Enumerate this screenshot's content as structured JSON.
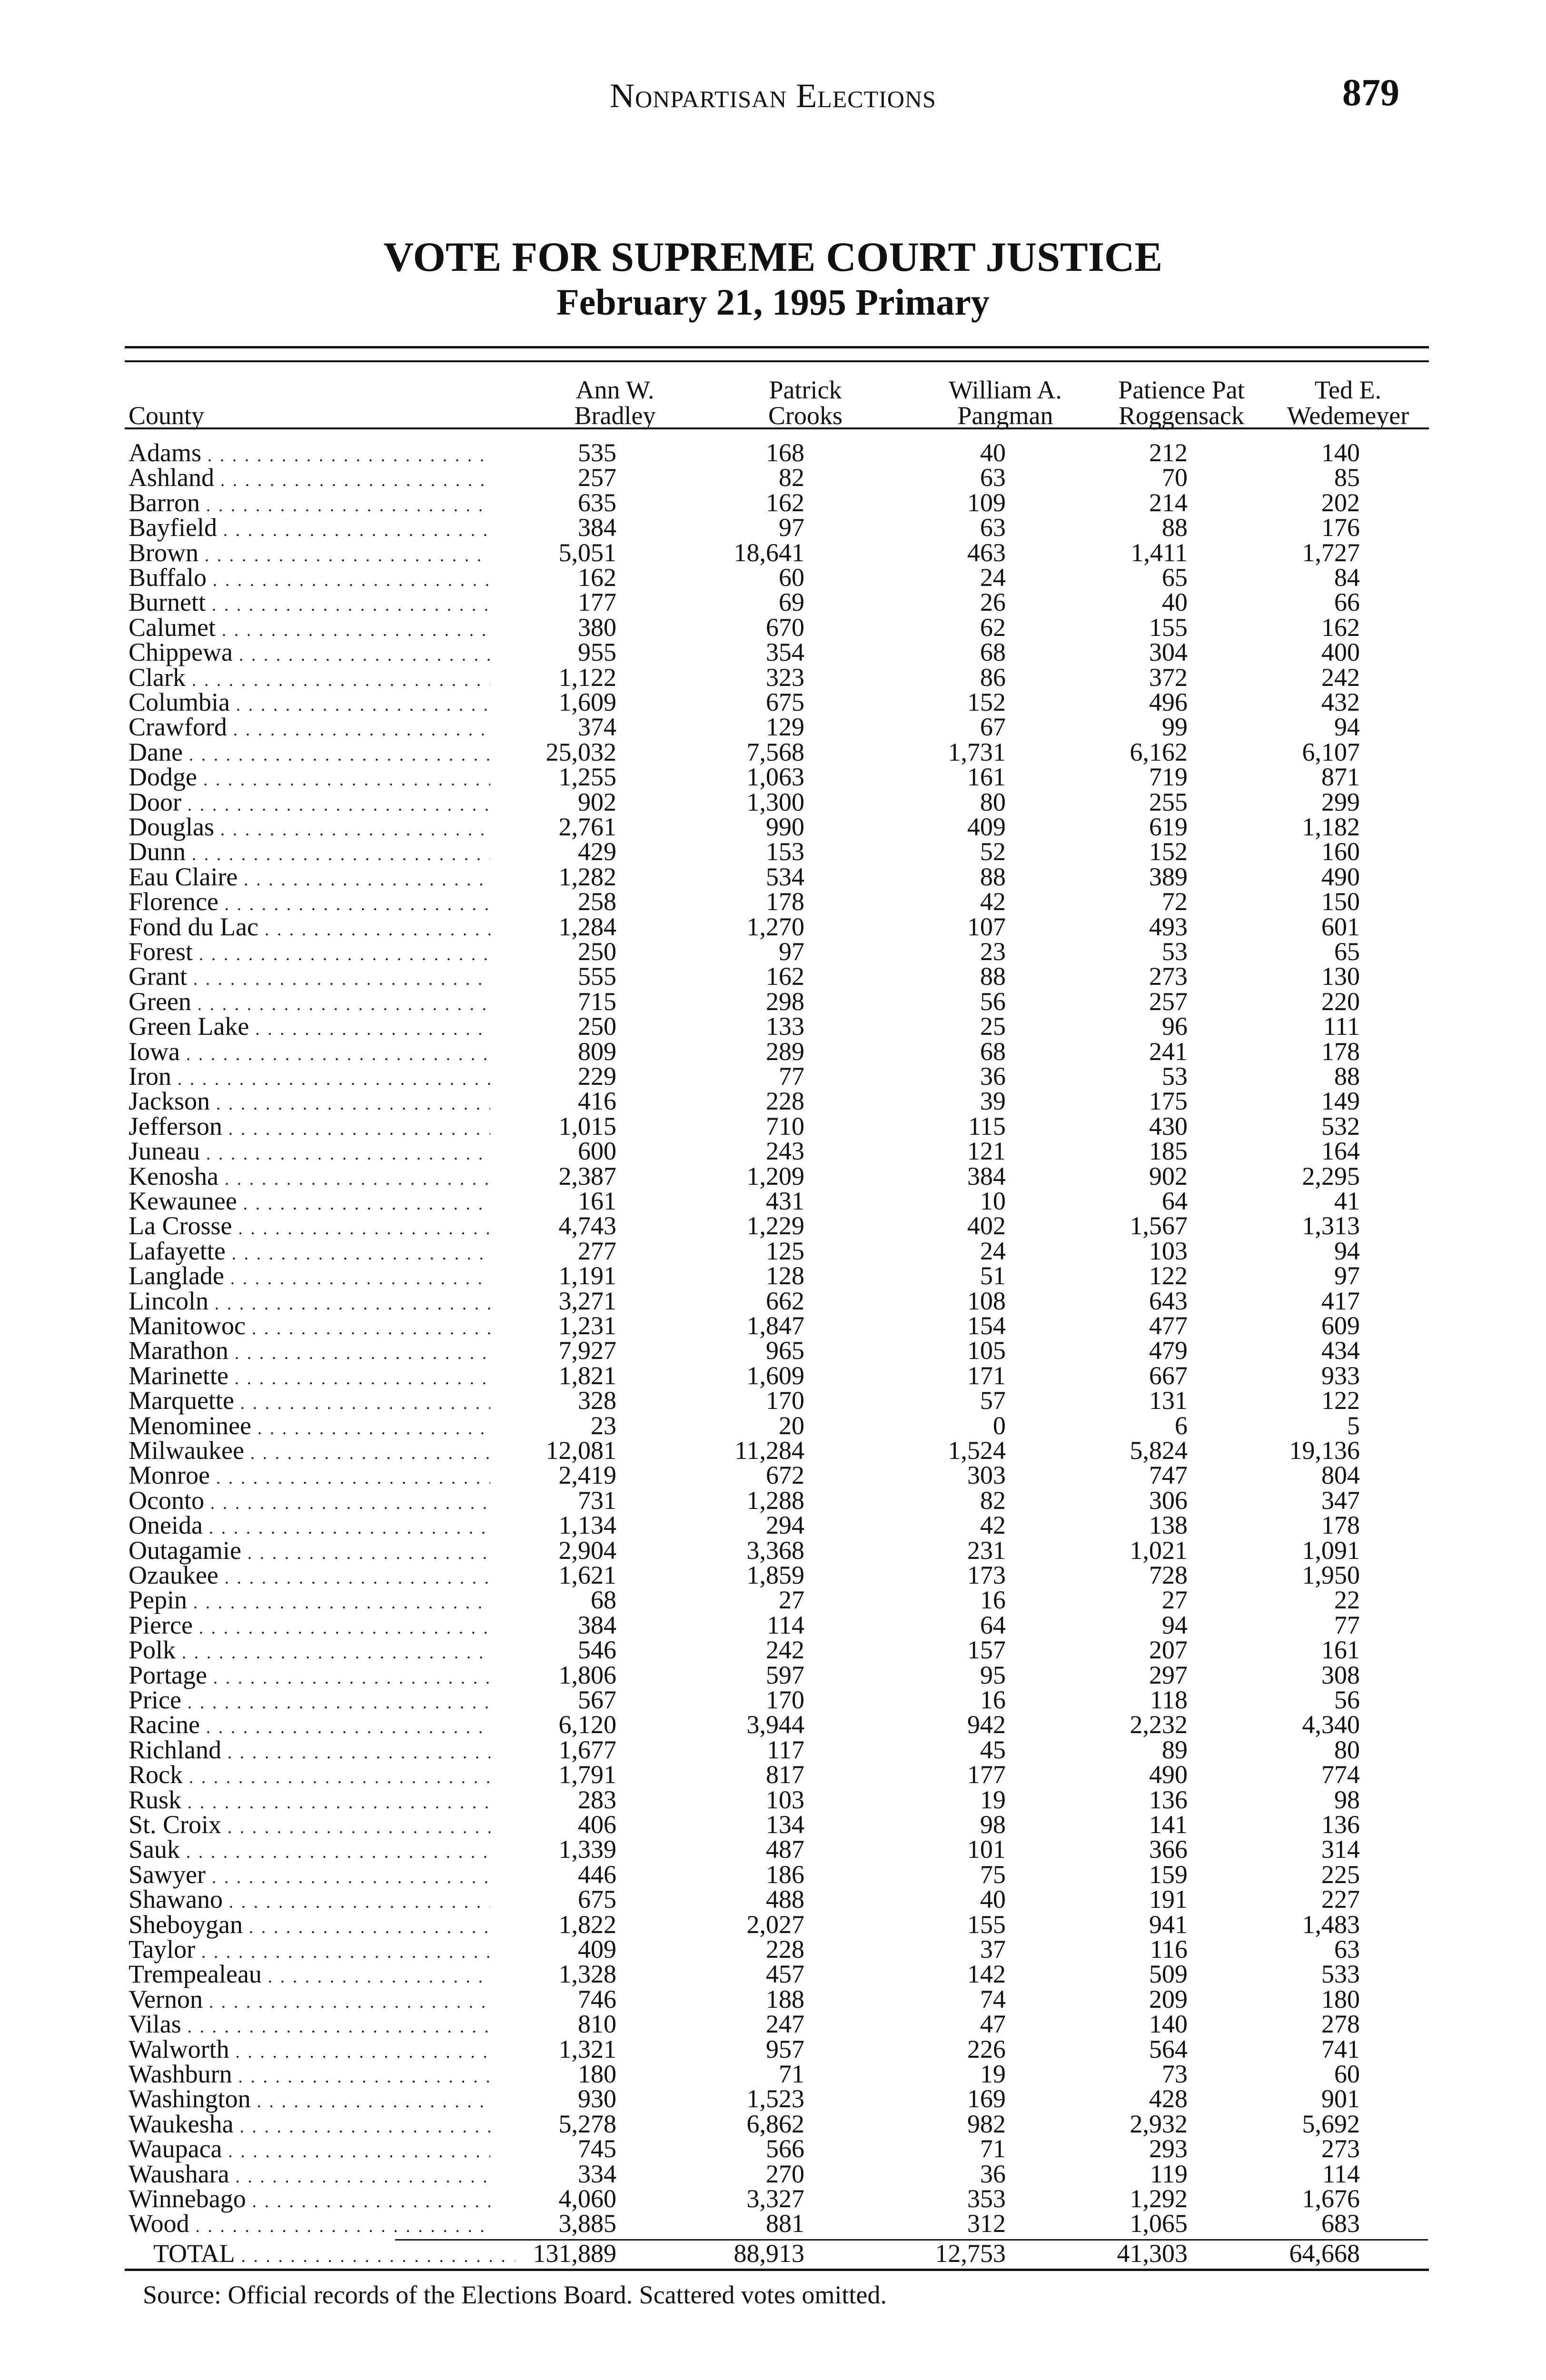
{
  "running_head": "Nonpartisan Elections",
  "page_number": "879",
  "title": "VOTE FOR SUPREME COURT JUSTICE",
  "subtitle": "February 21, 1995 Primary",
  "table": {
    "county_header": "County",
    "candidates": [
      {
        "first": "Ann W.",
        "last": "Bradley"
      },
      {
        "first": "Patrick",
        "last": "Crooks"
      },
      {
        "first": "William A.",
        "last": "Pangman"
      },
      {
        "first": "Patience Pat",
        "last": "Roggensack"
      },
      {
        "first": "Ted E.",
        "last": "Wedemeyer"
      }
    ],
    "rows": [
      [
        "Adams",
        "535",
        "168",
        "40",
        "212",
        "140"
      ],
      [
        "Ashland",
        "257",
        "82",
        "63",
        "70",
        "85"
      ],
      [
        "Barron",
        "635",
        "162",
        "109",
        "214",
        "202"
      ],
      [
        "Bayfield",
        "384",
        "97",
        "63",
        "88",
        "176"
      ],
      [
        "Brown",
        "5,051",
        "18,641",
        "463",
        "1,411",
        "1,727"
      ],
      [
        "Buffalo",
        "162",
        "60",
        "24",
        "65",
        "84"
      ],
      [
        "Burnett",
        "177",
        "69",
        "26",
        "40",
        "66"
      ],
      [
        "Calumet",
        "380",
        "670",
        "62",
        "155",
        "162"
      ],
      [
        "Chippewa",
        "955",
        "354",
        "68",
        "304",
        "400"
      ],
      [
        "Clark",
        "1,122",
        "323",
        "86",
        "372",
        "242"
      ],
      [
        "Columbia",
        "1,609",
        "675",
        "152",
        "496",
        "432"
      ],
      [
        "Crawford",
        "374",
        "129",
        "67",
        "99",
        "94"
      ],
      [
        "Dane",
        "25,032",
        "7,568",
        "1,731",
        "6,162",
        "6,107"
      ],
      [
        "Dodge",
        "1,255",
        "1,063",
        "161",
        "719",
        "871"
      ],
      [
        "Door",
        "902",
        "1,300",
        "80",
        "255",
        "299"
      ],
      [
        "Douglas",
        "2,761",
        "990",
        "409",
        "619",
        "1,182"
      ],
      [
        "Dunn",
        "429",
        "153",
        "52",
        "152",
        "160"
      ],
      [
        "Eau Claire",
        "1,282",
        "534",
        "88",
        "389",
        "490"
      ],
      [
        "Florence",
        "258",
        "178",
        "42",
        "72",
        "150"
      ],
      [
        "Fond du Lac",
        "1,284",
        "1,270",
        "107",
        "493",
        "601"
      ],
      [
        "Forest",
        "250",
        "97",
        "23",
        "53",
        "65"
      ],
      [
        "Grant",
        "555",
        "162",
        "88",
        "273",
        "130"
      ],
      [
        "Green",
        "715",
        "298",
        "56",
        "257",
        "220"
      ],
      [
        "Green Lake",
        "250",
        "133",
        "25",
        "96",
        "111"
      ],
      [
        "Iowa",
        "809",
        "289",
        "68",
        "241",
        "178"
      ],
      [
        "Iron",
        "229",
        "77",
        "36",
        "53",
        "88"
      ],
      [
        "Jackson",
        "416",
        "228",
        "39",
        "175",
        "149"
      ],
      [
        "Jefferson",
        "1,015",
        "710",
        "115",
        "430",
        "532"
      ],
      [
        "Juneau",
        "600",
        "243",
        "121",
        "185",
        "164"
      ],
      [
        "Kenosha",
        "2,387",
        "1,209",
        "384",
        "902",
        "2,295"
      ],
      [
        "Kewaunee",
        "161",
        "431",
        "10",
        "64",
        "41"
      ],
      [
        "La Crosse",
        "4,743",
        "1,229",
        "402",
        "1,567",
        "1,313"
      ],
      [
        "Lafayette",
        "277",
        "125",
        "24",
        "103",
        "94"
      ],
      [
        "Langlade",
        "1,191",
        "128",
        "51",
        "122",
        "97"
      ],
      [
        "Lincoln",
        "3,271",
        "662",
        "108",
        "643",
        "417"
      ],
      [
        "Manitowoc",
        "1,231",
        "1,847",
        "154",
        "477",
        "609"
      ],
      [
        "Marathon",
        "7,927",
        "965",
        "105",
        "479",
        "434"
      ],
      [
        "Marinette",
        "1,821",
        "1,609",
        "171",
        "667",
        "933"
      ],
      [
        "Marquette",
        "328",
        "170",
        "57",
        "131",
        "122"
      ],
      [
        "Menominee",
        "23",
        "20",
        "0",
        "6",
        "5"
      ],
      [
        "Milwaukee",
        "12,081",
        "11,284",
        "1,524",
        "5,824",
        "19,136"
      ],
      [
        "Monroe",
        "2,419",
        "672",
        "303",
        "747",
        "804"
      ],
      [
        "Oconto",
        "731",
        "1,288",
        "82",
        "306",
        "347"
      ],
      [
        "Oneida",
        "1,134",
        "294",
        "42",
        "138",
        "178"
      ],
      [
        "Outagamie",
        "2,904",
        "3,368",
        "231",
        "1,021",
        "1,091"
      ],
      [
        "Ozaukee",
        "1,621",
        "1,859",
        "173",
        "728",
        "1,950"
      ],
      [
        "Pepin",
        "68",
        "27",
        "16",
        "27",
        "22"
      ],
      [
        "Pierce",
        "384",
        "114",
        "64",
        "94",
        "77"
      ],
      [
        "Polk",
        "546",
        "242",
        "157",
        "207",
        "161"
      ],
      [
        "Portage",
        "1,806",
        "597",
        "95",
        "297",
        "308"
      ],
      [
        "Price",
        "567",
        "170",
        "16",
        "118",
        "56"
      ],
      [
        "Racine",
        "6,120",
        "3,944",
        "942",
        "2,232",
        "4,340"
      ],
      [
        "Richland",
        "1,677",
        "117",
        "45",
        "89",
        "80"
      ],
      [
        "Rock",
        "1,791",
        "817",
        "177",
        "490",
        "774"
      ],
      [
        "Rusk",
        "283",
        "103",
        "19",
        "136",
        "98"
      ],
      [
        "St. Croix",
        "406",
        "134",
        "98",
        "141",
        "136"
      ],
      [
        "Sauk",
        "1,339",
        "487",
        "101",
        "366",
        "314"
      ],
      [
        "Sawyer",
        "446",
        "186",
        "75",
        "159",
        "225"
      ],
      [
        "Shawano",
        "675",
        "488",
        "40",
        "191",
        "227"
      ],
      [
        "Sheboygan",
        "1,822",
        "2,027",
        "155",
        "941",
        "1,483"
      ],
      [
        "Taylor",
        "409",
        "228",
        "37",
        "116",
        "63"
      ],
      [
        "Trempealeau",
        "1,328",
        "457",
        "142",
        "509",
        "533"
      ],
      [
        "Vernon",
        "746",
        "188",
        "74",
        "209",
        "180"
      ],
      [
        "Vilas",
        "810",
        "247",
        "47",
        "140",
        "278"
      ],
      [
        "Walworth",
        "1,321",
        "957",
        "226",
        "564",
        "741"
      ],
      [
        "Washburn",
        "180",
        "71",
        "19",
        "73",
        "60"
      ],
      [
        "Washington",
        "930",
        "1,523",
        "169",
        "428",
        "901"
      ],
      [
        "Waukesha",
        "5,278",
        "6,862",
        "982",
        "2,932",
        "5,692"
      ],
      [
        "Waupaca",
        "745",
        "566",
        "71",
        "293",
        "273"
      ],
      [
        "Waushara",
        "334",
        "270",
        "36",
        "119",
        "114"
      ],
      [
        "Winnebago",
        "4,060",
        "3,327",
        "353",
        "1,292",
        "1,676"
      ],
      [
        "Wood",
        "3,885",
        "881",
        "312",
        "1,065",
        "683"
      ]
    ],
    "total": [
      "TOTAL",
      "131,889",
      "88,913",
      "12,753",
      "41,303",
      "64,668"
    ]
  },
  "source_note": "Source: Official records of the Elections Board. Scattered votes omitted."
}
